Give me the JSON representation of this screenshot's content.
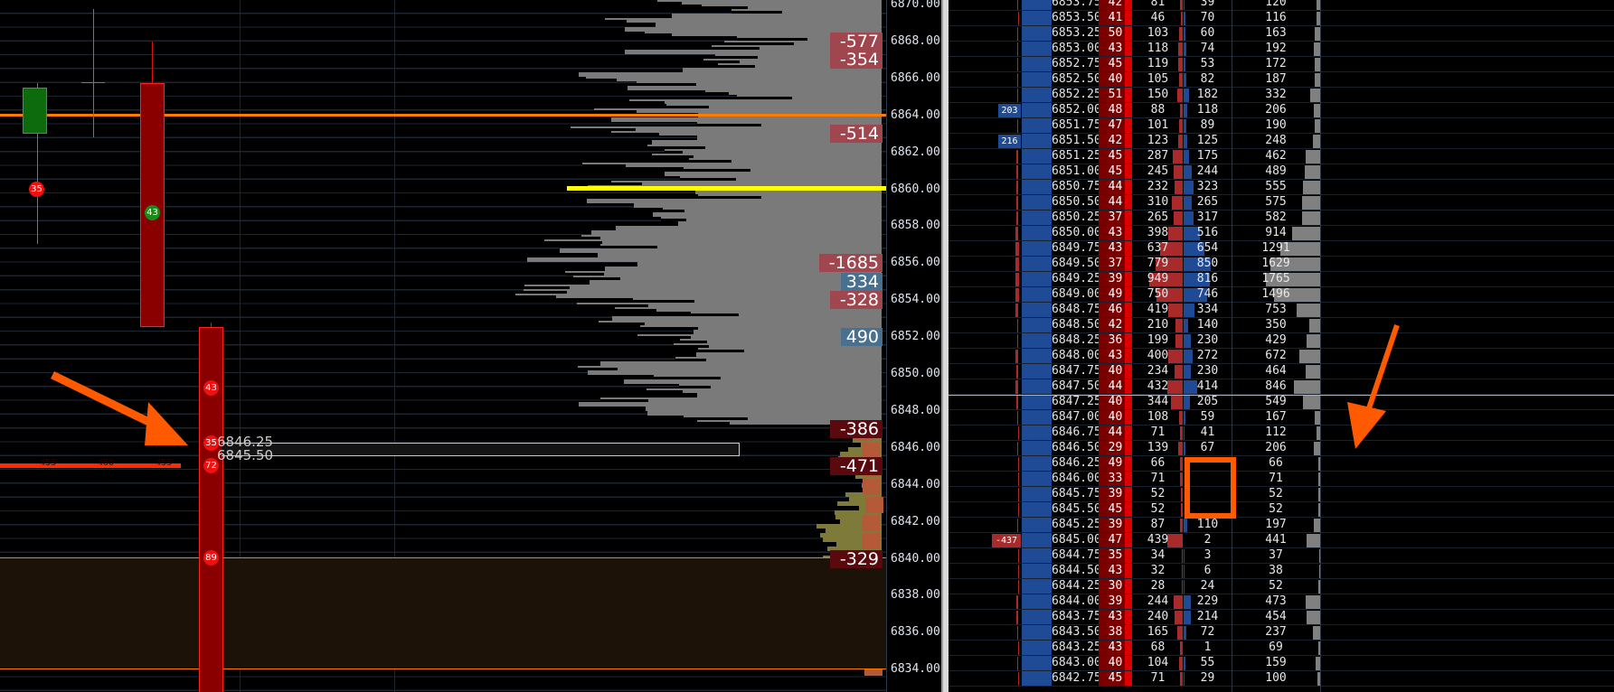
{
  "colors": {
    "bid": "#a82a2a",
    "ask": "#1f4a96",
    "total": "#808080",
    "orange": "#ff5a00",
    "yellow": "#ffff00"
  },
  "chart": {
    "price_axis": [
      "6870.00",
      "6868.00",
      "6866.00",
      "6864.00",
      "6862.00",
      "6860.00",
      "6858.00",
      "6856.00",
      "6854.00",
      "6852.00",
      "6850.00",
      "6848.00",
      "6846.00",
      "6844.00",
      "6842.00",
      "6840.00",
      "6838.00",
      "6836.00",
      "6834.00"
    ],
    "deltas": [
      {
        "price": 6868,
        "text": "-577",
        "color": "#a0464e"
      },
      {
        "price": 6867,
        "text": "-354",
        "color": "#a0464e"
      },
      {
        "price": 6863,
        "text": "-514",
        "color": "#a0464e"
      },
      {
        "price": 6856,
        "text": "-1685",
        "color": "#a0464e"
      },
      {
        "price": 6855,
        "text": "334",
        "color": "#4a7090"
      },
      {
        "price": 6854,
        "text": "-328",
        "color": "#a0464e"
      },
      {
        "price": 6852,
        "text": "490",
        "color": "#4a7090"
      },
      {
        "price": 6847,
        "text": "-386",
        "color": "#5a0a0e"
      },
      {
        "price": 6845,
        "text": "-471",
        "color": "#5a0a0e"
      },
      {
        "price": 6840,
        "text": "-329",
        "color": "#5a0a0e"
      }
    ],
    "bubbles": [
      {
        "text": "35",
        "color": "#f01010"
      },
      {
        "text": "43",
        "color": "#1a8a1a"
      },
      {
        "text": "43",
        "color": "#f01010"
      },
      {
        "text": "35",
        "color": "#f01010"
      },
      {
        "text": "72",
        "color": "#f01010"
      },
      {
        "text": "89",
        "color": "#f01010"
      }
    ],
    "box_labels": [
      "6846.25",
      "6845.50"
    ],
    "red_line_labels": [
      "453",
      "460",
      "453"
    ]
  },
  "ladder": {
    "rows": [
      [
        "6853.75",
        "42",
        "81",
        "39",
        "120"
      ],
      [
        "6853.50",
        "41",
        "46",
        "70",
        "116"
      ],
      [
        "6853.25",
        "50",
        "103",
        "60",
        "163"
      ],
      [
        "6853.00",
        "43",
        "118",
        "74",
        "192"
      ],
      [
        "6852.75",
        "45",
        "119",
        "53",
        "172"
      ],
      [
        "6852.50",
        "40",
        "105",
        "82",
        "187"
      ],
      [
        "6852.25",
        "51",
        "150",
        "182",
        "332"
      ],
      [
        "6852.00",
        "48",
        "88",
        "118",
        "206"
      ],
      [
        "6851.75",
        "47",
        "101",
        "89",
        "190"
      ],
      [
        "6851.50",
        "42",
        "123",
        "125",
        "248"
      ],
      [
        "6851.25",
        "45",
        "287",
        "175",
        "462"
      ],
      [
        "6851.00",
        "45",
        "245",
        "244",
        "489"
      ],
      [
        "6850.75",
        "44",
        "232",
        "323",
        "555"
      ],
      [
        "6850.50",
        "44",
        "310",
        "265",
        "575"
      ],
      [
        "6850.25",
        "37",
        "265",
        "317",
        "582"
      ],
      [
        "6850.00",
        "43",
        "398",
        "516",
        "914"
      ],
      [
        "6849.75",
        "43",
        "637",
        "654",
        "1291"
      ],
      [
        "6849.50",
        "37",
        "779",
        "850",
        "1629"
      ],
      [
        "6849.25",
        "39",
        "949",
        "816",
        "1765"
      ],
      [
        "6849.00",
        "49",
        "750",
        "746",
        "1496"
      ],
      [
        "6848.75",
        "46",
        "419",
        "334",
        "753"
      ],
      [
        "6848.50",
        "42",
        "210",
        "140",
        "350"
      ],
      [
        "6848.25",
        "36",
        "199",
        "230",
        "429"
      ],
      [
        "6848.00",
        "43",
        "400",
        "272",
        "672"
      ],
      [
        "6847.75",
        "40",
        "234",
        "230",
        "464"
      ],
      [
        "6847.50",
        "44",
        "432",
        "414",
        "846"
      ],
      [
        "6847.25",
        "40",
        "344",
        "205",
        "549"
      ],
      [
        "6847.00",
        "40",
        "108",
        "59",
        "167"
      ],
      [
        "6846.75",
        "44",
        "71",
        "41",
        "112"
      ],
      [
        "6846.50",
        "29",
        "139",
        "67",
        "206"
      ],
      [
        "6846.25",
        "49",
        "66",
        "",
        "66"
      ],
      [
        "6846.00",
        "33",
        "71",
        "",
        "71"
      ],
      [
        "6845.75",
        "39",
        "52",
        "",
        "52"
      ],
      [
        "6845.50",
        "45",
        "52",
        "",
        "52"
      ],
      [
        "6845.25",
        "39",
        "87",
        "110",
        "197"
      ],
      [
        "6845.00",
        "47",
        "439",
        "2",
        "441"
      ],
      [
        "6844.75",
        "35",
        "34",
        "3",
        "37"
      ],
      [
        "6844.50",
        "43",
        "32",
        "6",
        "38"
      ],
      [
        "6844.25",
        "30",
        "28",
        "24",
        "52"
      ],
      [
        "6844.00",
        "39",
        "244",
        "229",
        "473"
      ],
      [
        "6843.75",
        "43",
        "240",
        "214",
        "454"
      ],
      [
        "6843.50",
        "38",
        "165",
        "72",
        "237"
      ],
      [
        "6843.25",
        "43",
        "68",
        "1",
        "69"
      ],
      [
        "6843.00",
        "40",
        "104",
        "55",
        "159"
      ],
      [
        "6842.75",
        "45",
        "71",
        "29",
        "100"
      ]
    ],
    "side_labels": [
      {
        "row": 7,
        "text": "203",
        "color": "#1f4a96"
      },
      {
        "row": 9,
        "text": "216",
        "color": "#1f4a96"
      },
      {
        "row": 35,
        "text": "-437",
        "color": "#a82a2a"
      }
    ]
  }
}
